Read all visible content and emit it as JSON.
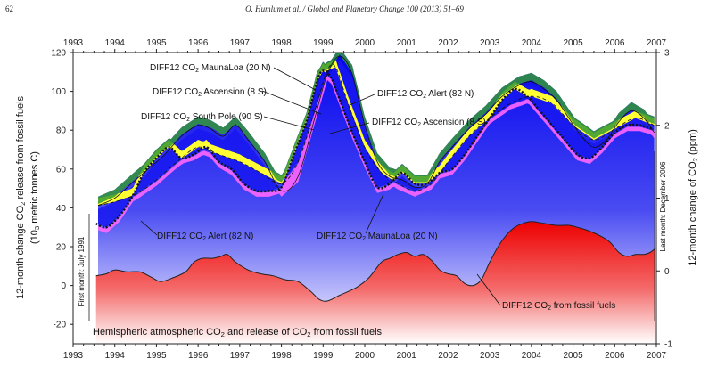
{
  "header": {
    "page_number": "62",
    "citation": "O. Humlum et al. / Global and Planetary Change 100 (2013) 51–69"
  },
  "chart_data": {
    "type": "area",
    "title": "Hemispheric atmospheric CO2 and release of CO2 from fossil fuels",
    "title_parts": [
      "Hemispheric atmospheric CO",
      "2",
      " and release of CO",
      "2",
      " from fossil fuels"
    ],
    "ylabel_left_parts": [
      "12-month change CO",
      "2",
      " release from fossil fuels"
    ],
    "ylabel_left_line2_parts": [
      "(10",
      "3",
      " metric tonnes C)"
    ],
    "ylabel_right_parts": [
      "12-month change of CO",
      "2",
      " (ppm)"
    ],
    "xlim": [
      1993,
      2007
    ],
    "ylim_left": [
      -30,
      120
    ],
    "ylim_right": [
      -1,
      3
    ],
    "x_ticks": [
      "1993",
      "1994",
      "1995",
      "1996",
      "1997",
      "1998",
      "1999",
      "2000",
      "2001",
      "2002",
      "2003",
      "2004",
      "2005",
      "2006",
      "2007"
    ],
    "y_left_ticks": [
      "-20",
      "0",
      "20",
      "40",
      "60",
      "80",
      "100",
      "120"
    ],
    "y_right_ticks": [
      "-1",
      "0",
      "1",
      "2",
      "3"
    ],
    "first_month_label": "First month: July 1991",
    "last_month_label": "Last month: December 2006",
    "series": [
      {
        "name": "Fossil fuels",
        "axis": "left",
        "color": "#ee1111",
        "x": [
          1993.55,
          1993.8,
          1994.0,
          1994.3,
          1994.6,
          1994.9,
          1995.1,
          1995.4,
          1995.7,
          1995.9,
          1996.1,
          1996.35,
          1996.55,
          1996.7,
          1996.9,
          1997.2,
          1997.5,
          1997.8,
          1998.1,
          1998.4,
          1998.7,
          1998.9,
          1999.1,
          1999.4,
          1999.8,
          2000.1,
          2000.4,
          2000.6,
          2000.8,
          2001.0,
          2001.2,
          2001.4,
          2001.6,
          2001.8,
          2002.0,
          2002.2,
          2002.4,
          2002.6,
          2002.8,
          2003.0,
          2003.2,
          2003.4,
          2003.6,
          2003.8,
          2004.0,
          2004.3,
          2004.6,
          2004.9,
          2005.1,
          2005.4,
          2005.7,
          2005.9,
          2006.1,
          2006.3,
          2006.5,
          2006.7,
          2006.85,
          2006.97
        ],
        "y": [
          5,
          6,
          8,
          7,
          7,
          4,
          2,
          4,
          7,
          12,
          14,
          14,
          15,
          16,
          12,
          8,
          6,
          5,
          3,
          2,
          -3,
          -7,
          -8,
          -5,
          -1,
          4,
          12,
          14,
          16,
          17,
          15,
          16,
          13,
          8,
          6,
          5,
          1,
          0,
          3,
          12,
          20,
          26,
          30,
          32,
          33,
          32,
          31,
          31,
          30,
          28,
          25,
          22,
          17,
          15,
          16,
          16,
          17,
          19
        ]
      },
      {
        "name": "DIFF12 CO2 MaunaLoa (20 N)",
        "axis": "right",
        "color": "#111111",
        "style": "thick-dotted",
        "x": [
          1993.55,
          1993.8,
          1994.1,
          1994.4,
          1994.7,
          1995.0,
          1995.3,
          1995.6,
          1995.9,
          1996.2,
          1996.5,
          1996.8,
          1997.1,
          1997.4,
          1997.7,
          1998.0,
          1998.3,
          1998.6,
          1998.85,
          1999.0,
          1999.2,
          1999.4,
          1999.7,
          2000.0,
          2000.3,
          2000.6,
          2000.9,
          2001.2,
          2001.5,
          2001.8,
          2002.1,
          2002.4,
          2002.7,
          2003.0,
          2003.3,
          2003.6,
          2003.9,
          2004.2,
          2004.5,
          2004.8,
          2005.1,
          2005.4,
          2005.7,
          2006.0,
          2006.3,
          2006.6,
          2006.9
        ],
        "y": [
          0.65,
          0.6,
          0.75,
          1.0,
          1.35,
          1.55,
          1.7,
          1.55,
          1.6,
          1.7,
          1.5,
          1.4,
          1.2,
          1.1,
          1.1,
          1.15,
          1.6,
          2.05,
          2.6,
          2.75,
          2.65,
          2.35,
          1.9,
          1.5,
          1.15,
          1.2,
          1.35,
          1.2,
          1.2,
          1.35,
          1.4,
          1.6,
          1.85,
          2.1,
          2.35,
          2.5,
          2.4,
          2.2,
          2.0,
          1.8,
          1.6,
          1.55,
          1.7,
          1.9,
          2.0,
          2.0,
          1.95
        ]
      },
      {
        "name": "DIFF12 CO2 Alert (82 N)",
        "axis": "right",
        "color": "#111111",
        "style": "thin",
        "x": [
          1993.6,
          1994.0,
          1994.4,
          1994.8,
          1995.2,
          1995.6,
          1996.0,
          1996.3,
          1996.6,
          1996.9,
          1997.2,
          1997.6,
          1998.0,
          1998.4,
          1998.8,
          1999.1,
          1999.4,
          1999.7,
          2000.0,
          2000.3,
          2000.6,
          2000.9,
          2001.2,
          2001.5,
          2001.8,
          2002.1,
          2002.5,
          2002.9,
          2003.3,
          2003.7,
          2004.0,
          2004.3,
          2004.6,
          2004.9,
          2005.2,
          2005.5,
          2005.8,
          2006.1,
          2006.4,
          2006.7,
          2006.95
        ],
        "y": [
          0.9,
          1.0,
          1.2,
          1.4,
          1.6,
          1.85,
          2.0,
          1.95,
          1.85,
          2.0,
          1.8,
          1.5,
          1.1,
          1.3,
          2.1,
          2.7,
          2.95,
          2.7,
          2.0,
          1.5,
          1.3,
          1.25,
          1.15,
          1.2,
          1.5,
          1.7,
          1.95,
          2.15,
          2.4,
          2.55,
          2.6,
          2.5,
          2.35,
          2.1,
          1.85,
          1.7,
          1.8,
          2.05,
          2.2,
          2.1,
          1.9
        ]
      },
      {
        "name": "DIFF12 CO2 Ascension (8 S)",
        "axis": "right",
        "color": "#111111",
        "style": "dashed",
        "x": [
          1993.6,
          1994.0,
          1994.5,
          1995.0,
          1995.5,
          1996.0,
          1996.5,
          1997.0,
          1997.5,
          1998.0,
          1998.4,
          1998.8,
          1999.1,
          1999.3,
          1999.6,
          2000.0,
          2000.4,
          2000.8,
          2001.2,
          2001.6,
          2002.0,
          2002.5,
          2003.0,
          2003.5,
          2004.0,
          2004.5,
          2005.0,
          2005.5,
          2006.0,
          2006.5,
          2006.95
        ],
        "y": [
          0.9,
          0.95,
          1.05,
          1.25,
          1.5,
          1.7,
          1.6,
          1.5,
          1.35,
          1.2,
          1.5,
          2.2,
          2.75,
          2.8,
          2.3,
          1.7,
          1.35,
          1.2,
          1.1,
          1.2,
          1.5,
          1.85,
          2.1,
          2.3,
          2.4,
          2.3,
          2.0,
          1.8,
          1.95,
          2.1,
          2.0
        ]
      },
      {
        "name": "DIFF12 CO2 South Pole (90 S)",
        "axis": "right",
        "color": "#111111",
        "style": "thin"
      }
    ],
    "band_fills": [
      {
        "name": "lowest-station band",
        "color": "#ff66ff"
      },
      {
        "name": "Ascension above others",
        "color": "#ffff33"
      },
      {
        "name": "Alert above others",
        "color": "#339933"
      },
      {
        "name": "envelope gradient",
        "color_top": "#0000ee",
        "color_bottom": "#ffffff"
      }
    ],
    "annotations": [
      {
        "parts": [
          "DIFF12 CO",
          "2",
          " MaunaLoa (20 N)"
        ]
      },
      {
        "parts": [
          "DIFF12 CO",
          "2",
          " Ascension (8 S)"
        ]
      },
      {
        "parts": [
          "DIFF12 CO",
          "2",
          " South Pole (90 S)"
        ]
      },
      {
        "parts": [
          "DIFF12 CO",
          "2",
          " Alert (82 N)"
        ]
      },
      {
        "parts": [
          "DIFF12 CO",
          "2",
          " Ascension (8 S)"
        ]
      },
      {
        "parts": [
          "DIFF12 CO",
          "2",
          " Alert (82 N)"
        ]
      },
      {
        "parts": [
          "DIFF12 CO",
          "2",
          " MaunaLoa (20 N)"
        ]
      },
      {
        "parts": [
          "DIFF12 CO",
          "2",
          " from fossil fuels"
        ]
      }
    ],
    "grid": false,
    "legend": "none (inline annotations)"
  }
}
